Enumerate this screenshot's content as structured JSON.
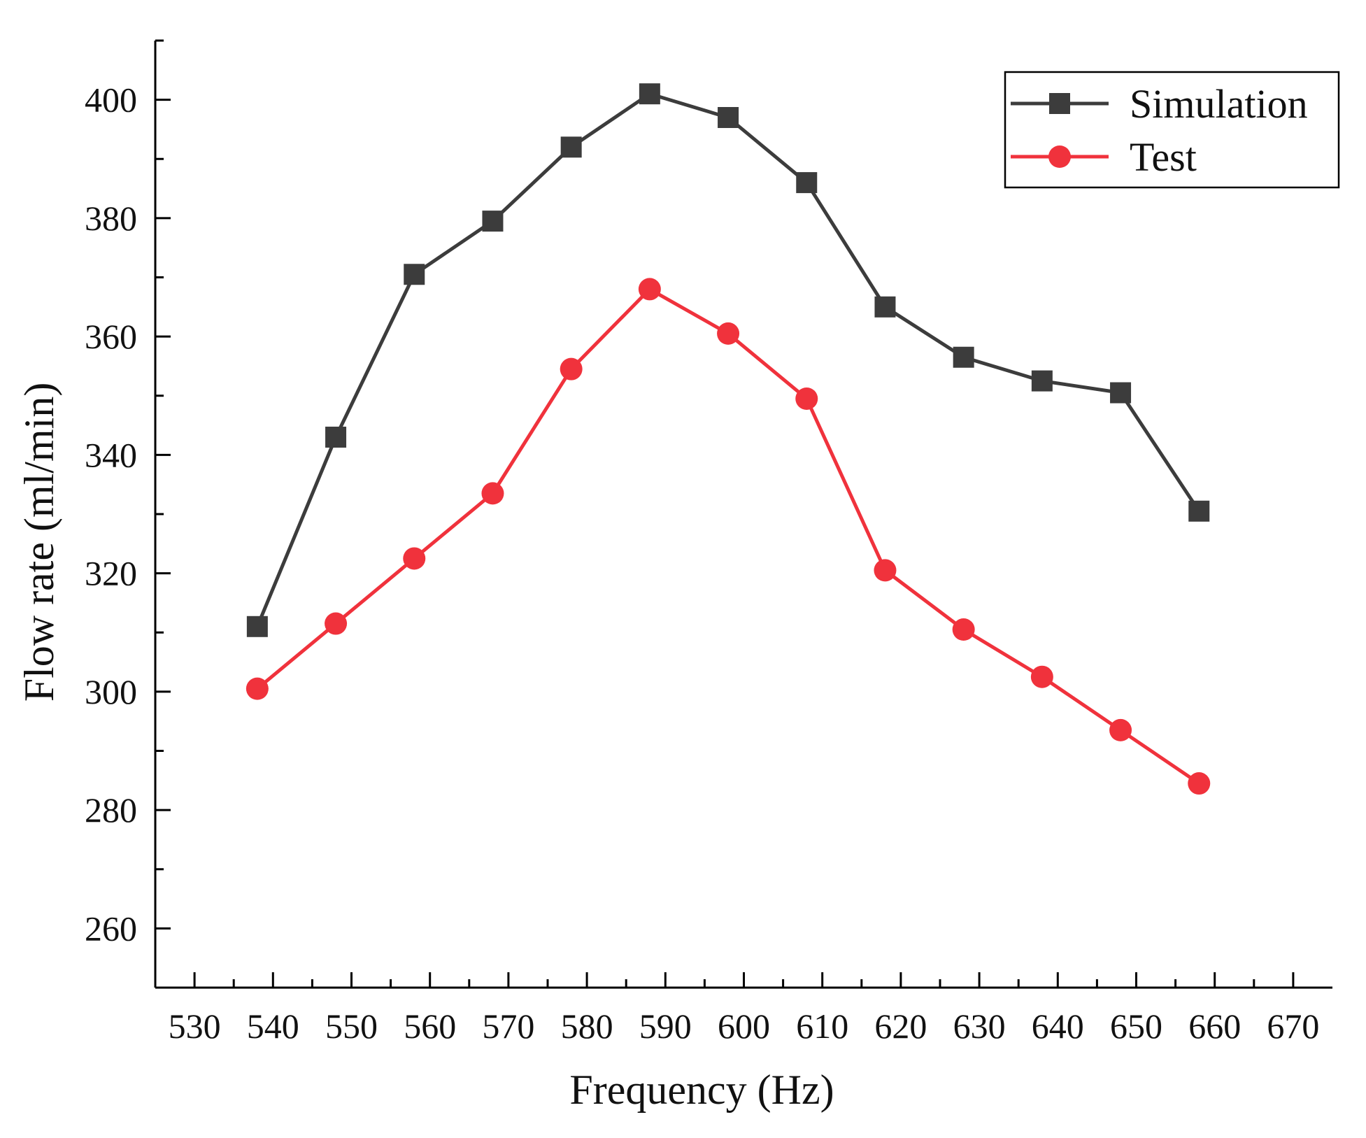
{
  "chart_data": {
    "type": "line",
    "title": "",
    "xlabel": "Frequency (Hz)",
    "ylabel": "Flow rate (ml/min)",
    "xlim": [
      525,
      675
    ],
    "ylim": [
      250,
      410
    ],
    "xticks": [
      530,
      540,
      550,
      560,
      570,
      580,
      590,
      600,
      610,
      620,
      630,
      640,
      650,
      660,
      670
    ],
    "xtick_labels": [
      "530",
      "540",
      "550",
      "560",
      "570",
      "580",
      "590",
      "600",
      "610",
      "620",
      "630",
      "640",
      "650",
      "660",
      "670"
    ],
    "yticks": [
      260,
      280,
      300,
      320,
      340,
      360,
      380,
      400
    ],
    "ytick_labels": [
      "260",
      "280",
      "300",
      "320",
      "340",
      "360",
      "380",
      "400"
    ],
    "grid": false,
    "legend_position": "top-right",
    "series": [
      {
        "name": "Simulation",
        "color": "#3c3c3c",
        "marker": "square",
        "x": [
          538,
          548,
          558,
          568,
          578,
          588,
          598,
          608,
          618,
          628,
          638,
          648,
          658
        ],
        "y": [
          311,
          343,
          370.5,
          379.5,
          392,
          401,
          397,
          386,
          365,
          356.5,
          352.5,
          350.5,
          330.5
        ]
      },
      {
        "name": "Test",
        "color": "#f0323c",
        "marker": "circle",
        "x": [
          538,
          548,
          558,
          568,
          578,
          588,
          598,
          608,
          618,
          628,
          638,
          648,
          658
        ],
        "y": [
          300.5,
          311.5,
          322.5,
          333.5,
          354.5,
          368,
          360.5,
          349.5,
          320.5,
          310.5,
          302.5,
          293.5,
          284.5
        ]
      }
    ]
  }
}
